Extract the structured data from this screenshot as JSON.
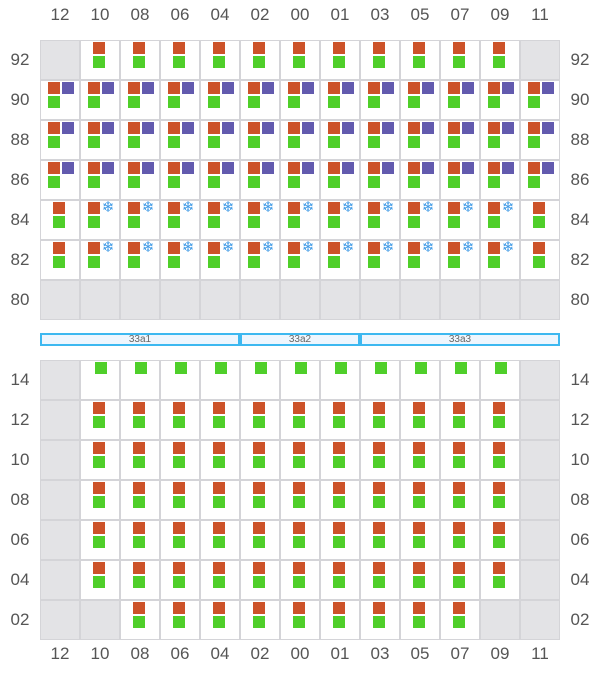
{
  "columns": [
    "12",
    "10",
    "08",
    "06",
    "04",
    "02",
    "00",
    "01",
    "03",
    "05",
    "07",
    "09",
    "11"
  ],
  "colors": {
    "hazard": "#cc5229",
    "loaded": "#4fcf2a",
    "special": "#625aae",
    "reefer": "#3f9ae6",
    "empty": "#e3e3e6",
    "hatch": "#3db8f0"
  },
  "deck": {
    "rows": [
      {
        "tier": "92",
        "cells": [
          "E",
          "S",
          "S",
          "S",
          "S",
          "S",
          "S",
          "S",
          "S",
          "S",
          "S",
          "S",
          "E"
        ]
      },
      {
        "tier": "90",
        "cells": [
          "P",
          "P",
          "P",
          "P",
          "P",
          "P",
          "P",
          "P",
          "P",
          "P",
          "P",
          "P",
          "P"
        ]
      },
      {
        "tier": "88",
        "cells": [
          "P",
          "P",
          "P",
          "P",
          "P",
          "P",
          "P",
          "P",
          "P",
          "P",
          "P",
          "P",
          "P"
        ]
      },
      {
        "tier": "86",
        "cells": [
          "P",
          "P",
          "P",
          "P",
          "P",
          "P",
          "P",
          "P",
          "P",
          "P",
          "P",
          "P",
          "P"
        ]
      },
      {
        "tier": "84",
        "cells": [
          "S",
          "R",
          "R",
          "R",
          "R",
          "R",
          "R",
          "R",
          "R",
          "R",
          "R",
          "R",
          "S"
        ]
      },
      {
        "tier": "82",
        "cells": [
          "S",
          "R",
          "R",
          "R",
          "R",
          "R",
          "R",
          "R",
          "R",
          "R",
          "R",
          "R",
          "S"
        ]
      },
      {
        "tier": "80",
        "cells": [
          "E",
          "E",
          "E",
          "E",
          "E",
          "E",
          "E",
          "E",
          "E",
          "E",
          "E",
          "E",
          "E"
        ]
      }
    ]
  },
  "hatches": [
    {
      "label": "33a1",
      "span": 5
    },
    {
      "label": "33a2",
      "span": 3
    },
    {
      "label": "33a3",
      "span": 5
    }
  ],
  "hold": {
    "rows": [
      {
        "tier": "14",
        "cells": [
          "E",
          "G",
          "G",
          "G",
          "G",
          "G",
          "G",
          "G",
          "G",
          "G",
          "G",
          "G",
          "E"
        ]
      },
      {
        "tier": "12",
        "cells": [
          "E",
          "S",
          "S",
          "S",
          "S",
          "S",
          "S",
          "S",
          "S",
          "S",
          "S",
          "S",
          "E"
        ]
      },
      {
        "tier": "10",
        "cells": [
          "E",
          "S",
          "S",
          "S",
          "S",
          "S",
          "S",
          "S",
          "S",
          "S",
          "S",
          "S",
          "E"
        ]
      },
      {
        "tier": "08",
        "cells": [
          "E",
          "S",
          "S",
          "S",
          "S",
          "S",
          "S",
          "S",
          "S",
          "S",
          "S",
          "S",
          "E"
        ]
      },
      {
        "tier": "06",
        "cells": [
          "E",
          "S",
          "S",
          "S",
          "S",
          "S",
          "S",
          "S",
          "S",
          "S",
          "S",
          "S",
          "E"
        ]
      },
      {
        "tier": "04",
        "cells": [
          "E",
          "S",
          "S",
          "S",
          "S",
          "S",
          "S",
          "S",
          "S",
          "S",
          "S",
          "S",
          "E"
        ]
      },
      {
        "tier": "02",
        "cells": [
          "E",
          "E",
          "S",
          "S",
          "S",
          "S",
          "S",
          "S",
          "S",
          "S",
          "S",
          "E",
          "E"
        ]
      }
    ]
  },
  "icons": {
    "reefer": "snowflake-icon"
  }
}
